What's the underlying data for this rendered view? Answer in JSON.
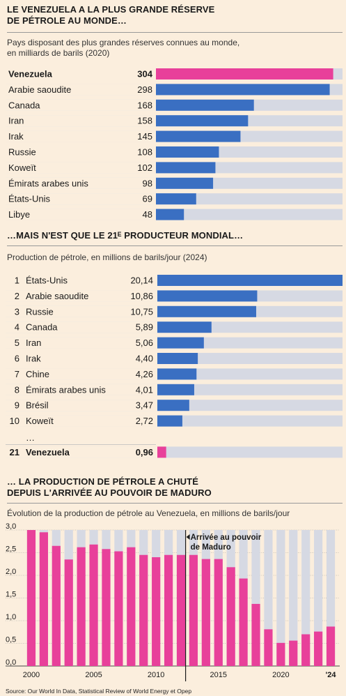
{
  "section1": {
    "title": "LE VENEZUELA A LA PLUS GRANDE RÉSERVE\nDE PÉTROLE AU MONDE…",
    "subtitle": "Pays disposant des plus grandes réserves connues au monde,\nen milliards de barils (2020)"
  },
  "section2": {
    "title": "…MAIS N'EST QUE LE 21ᴱ PRODUCTEUR MONDIAL…",
    "subtitle": "Production de pétrole, en millions de barils/jour (2024)"
  },
  "section3": {
    "title": "… LA PRODUCTION DE PÉTROLE A CHUTÉ\nDEPUIS L'ARRIVÉE AU POUVOIR DE MADURO",
    "subtitle": "Évolution de la production de pétrole au Venezuela, en millions de barils/jour"
  },
  "source": "Source: Our World In Data, Statistical Review of World Energy et Opep",
  "colors": {
    "blue": "#3a6fc2",
    "pink": "#e8409a",
    "track": "#d6d9e3",
    "background": "#fbeedd"
  },
  "chart_data": [
    {
      "type": "bar",
      "orientation": "horizontal",
      "categories": [
        "Venezuela",
        "Arabie saoudite",
        "Canada",
        "Iran",
        "Irak",
        "Russie",
        "Koweït",
        "Émirats arabes unis",
        "États-Unis",
        "Libye"
      ],
      "values": [
        304,
        298,
        168,
        158,
        145,
        108,
        102,
        98,
        69,
        48
      ],
      "value_labels": [
        "304",
        "298",
        "168",
        "158",
        "145",
        "108",
        "102",
        "98",
        "69",
        "48"
      ],
      "highlight": "Venezuela",
      "xlim": [
        0,
        320
      ]
    },
    {
      "type": "bar",
      "orientation": "horizontal",
      "ranks": [
        "1",
        "2",
        "3",
        "4",
        "5",
        "6",
        "7",
        "8",
        "9",
        "10"
      ],
      "categories": [
        "États-Unis",
        "Arabie saoudite",
        "Russie",
        "Canada",
        "Iran",
        "Irak",
        "Chine",
        "Émirats arabes unis",
        "Brésil",
        "Koweït"
      ],
      "values": [
        20.14,
        10.86,
        10.75,
        5.89,
        5.06,
        4.4,
        4.26,
        4.01,
        3.47,
        2.72
      ],
      "value_labels": [
        "20,14",
        "10,86",
        "10,75",
        "5,89",
        "5,06",
        "4,40",
        "4,26",
        "4,01",
        "3,47",
        "2,72"
      ],
      "ellipsis": "…",
      "highlight_row": {
        "rank": "21",
        "category": "Venezuela",
        "value": 0.96,
        "value_label": "0,96"
      },
      "xlim": [
        0,
        20.14
      ]
    },
    {
      "type": "bar",
      "x": [
        2000,
        2001,
        2002,
        2003,
        2004,
        2005,
        2006,
        2007,
        2008,
        2009,
        2010,
        2011,
        2012,
        2013,
        2014,
        2015,
        2016,
        2017,
        2018,
        2019,
        2020,
        2021,
        2022,
        2023,
        2024
      ],
      "values": [
        3.0,
        2.95,
        2.65,
        2.35,
        2.62,
        2.68,
        2.58,
        2.53,
        2.62,
        2.45,
        2.4,
        2.45,
        2.45,
        2.45,
        2.36,
        2.36,
        2.18,
        1.93,
        1.37,
        0.81,
        0.51,
        0.56,
        0.7,
        0.76,
        0.87
      ],
      "ylim": [
        0,
        3.0
      ],
      "yticks": [
        "0,0",
        "0,5",
        "1,0",
        "1,5",
        "2,0",
        "2,5",
        "3,0"
      ],
      "xtick_labels": [
        "2000",
        "2005",
        "2010",
        "2015",
        "2020",
        "'24"
      ],
      "annotation": {
        "x": 2013,
        "text": "Arrivée au pouvoir\nde Maduro"
      }
    }
  ]
}
